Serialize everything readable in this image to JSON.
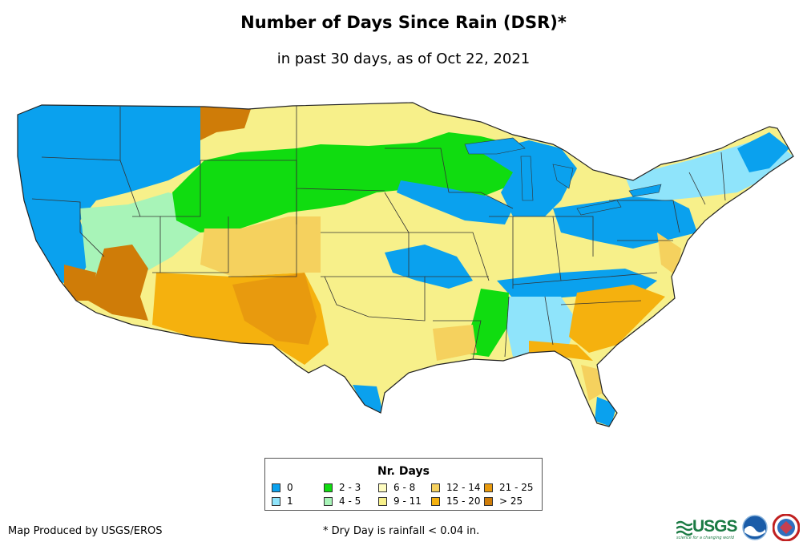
{
  "title": "Number of Days Since Rain (DSR)*",
  "subtitle": "in past 30 days, as of Oct 22, 2021",
  "legend": {
    "title": "Nr. Days",
    "items": [
      {
        "label": "0",
        "color": "#0aa1ee"
      },
      {
        "label": "1",
        "color": "#8fe4fb"
      },
      {
        "label": "2 - 3",
        "color": "#10dc10"
      },
      {
        "label": "4 - 5",
        "color": "#a8f4b8"
      },
      {
        "label": "6 - 8",
        "color": "#fefcc0"
      },
      {
        "label": "9 - 11",
        "color": "#f7f08a"
      },
      {
        "label": "12 - 14",
        "color": "#f5d15e"
      },
      {
        "label": "15 - 20",
        "color": "#f5b10e"
      },
      {
        "label": "21 - 25",
        "color": "#e89a0e"
      },
      {
        "label": "> 25",
        "color": "#cf7c08"
      }
    ]
  },
  "credit": "Map Produced by USGS/EROS",
  "footnote": "* Dry Day is rainfall < 0.04 in.",
  "logos": {
    "usgs_text": "USGS",
    "usgs_tagline": "science for a changing world"
  }
}
